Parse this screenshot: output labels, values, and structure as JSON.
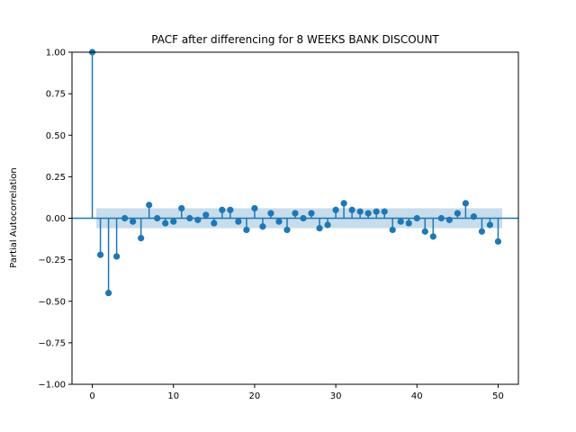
{
  "chart_data": {
    "type": "scatter",
    "title": "PACF after differencing for 8 WEEKS BANK DISCOUNT",
    "xlabel": "",
    "ylabel": "Partial Autocorrelation",
    "xlim": [
      -2.5,
      52.5
    ],
    "ylim": [
      -1.0,
      1.0
    ],
    "xticks": [
      0,
      10,
      20,
      30,
      40,
      50
    ],
    "xtick_labels": [
      "0",
      "10",
      "20",
      "30",
      "40",
      "50"
    ],
    "yticks": [
      1.0,
      0.75,
      0.5,
      0.25,
      0.0,
      -0.25,
      -0.5,
      -0.75,
      -1.0
    ],
    "ytick_labels": [
      "1.00",
      "0.75",
      "0.50",
      "0.25",
      "0.00",
      "−0.25",
      "−0.50",
      "−0.75",
      "−1.00"
    ],
    "confidence_band": {
      "lower": -0.06,
      "upper": 0.06,
      "x_start": 0.5,
      "x_end": 50.5
    },
    "lags": [
      0,
      1,
      2,
      3,
      4,
      5,
      6,
      7,
      8,
      9,
      10,
      11,
      12,
      13,
      14,
      15,
      16,
      17,
      18,
      19,
      20,
      21,
      22,
      23,
      24,
      25,
      26,
      27,
      28,
      29,
      30,
      31,
      32,
      33,
      34,
      35,
      36,
      37,
      38,
      39,
      40,
      41,
      42,
      43,
      44,
      45,
      46,
      47,
      48,
      49,
      50
    ],
    "values": [
      1.0,
      -0.22,
      -0.45,
      -0.23,
      0.0,
      -0.02,
      -0.12,
      0.08,
      0.0,
      -0.03,
      -0.02,
      0.06,
      0.0,
      -0.01,
      0.02,
      -0.03,
      0.05,
      0.05,
      -0.02,
      -0.07,
      0.06,
      -0.05,
      0.03,
      -0.02,
      -0.07,
      0.03,
      0.0,
      0.03,
      -0.06,
      -0.04,
      0.05,
      0.09,
      0.05,
      0.04,
      0.03,
      0.04,
      0.04,
      -0.07,
      -0.02,
      -0.03,
      0.0,
      -0.08,
      -0.11,
      0.0,
      -0.01,
      0.03,
      0.09,
      0.01,
      -0.08,
      -0.04,
      -0.14
    ],
    "colors": {
      "marker": "#1f77b4",
      "band": "#1f77b4"
    },
    "grid": false,
    "legend": "none"
  }
}
